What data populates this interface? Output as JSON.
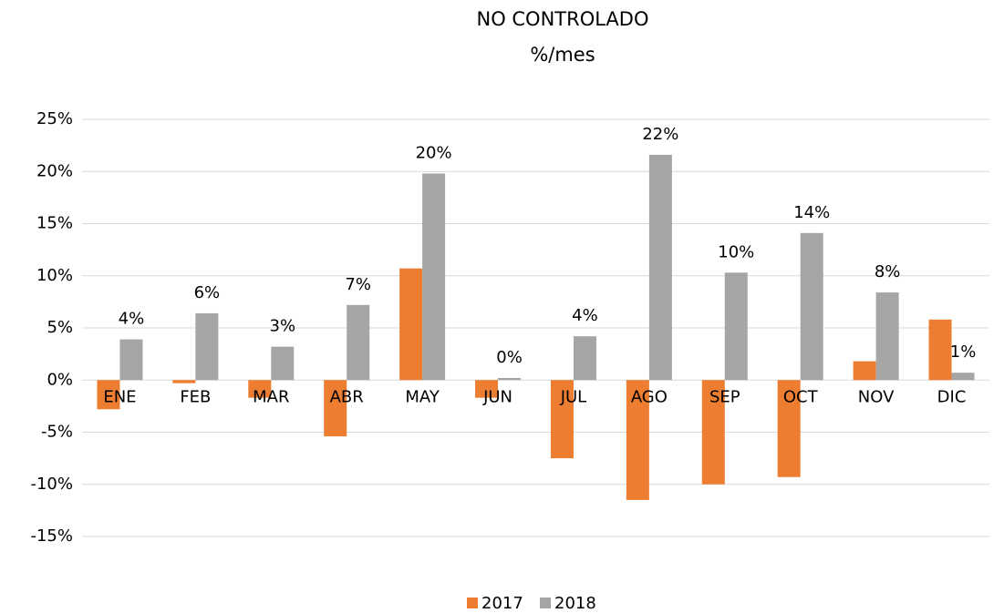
{
  "chart_data": {
    "type": "bar",
    "title": "NO CONTROLADO",
    "subtitle": "%/mes",
    "categories": [
      "ENE",
      "FEB",
      "MAR",
      "ABR",
      "MAY",
      "JUN",
      "JUL",
      "AGO",
      "SEP",
      "OCT",
      "NOV",
      "DIC"
    ],
    "series": [
      {
        "name": "2017",
        "color": "#ed7d31",
        "values": [
          -2.8,
          -0.3,
          -1.7,
          -5.4,
          10.7,
          -1.7,
          -7.5,
          -11.5,
          -10,
          -9.3,
          1.8,
          5.8
        ]
      },
      {
        "name": "2018",
        "color": "#a5a5a5",
        "values": [
          3.9,
          6.4,
          3.2,
          7.2,
          19.8,
          0.2,
          4.2,
          21.6,
          10.3,
          14.1,
          8.4,
          0.7
        ],
        "value_labels": [
          "4%",
          "6%",
          "3%",
          "7%",
          "20%",
          "0%",
          "4%",
          "22%",
          "10%",
          "14%",
          "8%",
          "1%"
        ]
      }
    ],
    "ylim": [
      -15,
      25
    ],
    "yticks": [
      {
        "value": -15,
        "label": "-15%"
      },
      {
        "value": -10,
        "label": "-10%"
      },
      {
        "value": -5,
        "label": "-5%"
      },
      {
        "value": 0,
        "label": "0%"
      },
      {
        "value": 5,
        "label": "5%"
      },
      {
        "value": 10,
        "label": "10%"
      },
      {
        "value": 15,
        "label": "15%"
      },
      {
        "value": 20,
        "label": "20%"
      },
      {
        "value": 25,
        "label": "25%"
      }
    ],
    "grid": true,
    "legend": "bottom"
  }
}
